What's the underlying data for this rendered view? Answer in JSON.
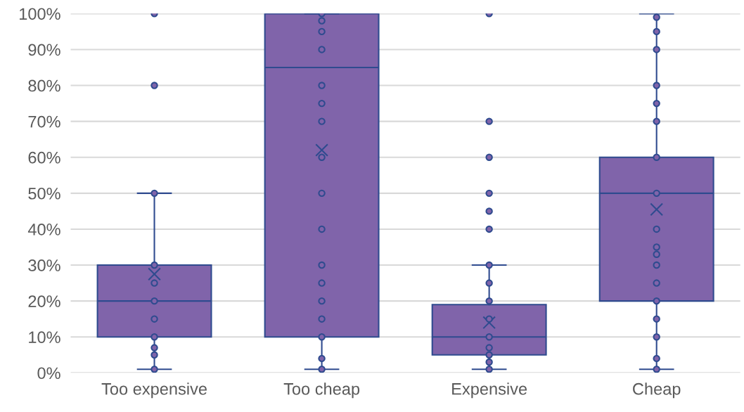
{
  "chart_data": {
    "type": "box",
    "categories": [
      "Too expensive",
      "Too cheap",
      "Expensive",
      "Cheap"
    ],
    "color": "#8064aa",
    "boxes": [
      {
        "low": 1,
        "q1": 10,
        "median": 20,
        "q3": 30,
        "high": 50,
        "mean": 27.5,
        "outliers": [
          80,
          100
        ]
      },
      {
        "low": 1,
        "q1": 10,
        "median": 85,
        "q3": 100,
        "high": 100,
        "mean": 62
      },
      {
        "low": 1,
        "q1": 5,
        "median": 10,
        "q3": 19,
        "high": 30,
        "mean": 14,
        "outliers": [
          40,
          45,
          50,
          60,
          70,
          100
        ]
      },
      {
        "low": 1,
        "q1": 20,
        "median": 50,
        "q3": 60,
        "high": 100,
        "mean": 45.5
      }
    ],
    "series": [
      {
        "type": "scatter",
        "color": "#8064aa",
        "x": [
          "Too expensive",
          "Too expensive",
          "Too expensive",
          "Too expensive",
          "Too expensive",
          "Too expensive",
          "Too expensive",
          "Too expensive",
          "Too expensive"
        ],
        "values": [
          1,
          5,
          7,
          10,
          15,
          20,
          25,
          30,
          50
        ]
      },
      {
        "type": "scatter",
        "color": "#8064aa",
        "x": [
          "Too cheap",
          "Too cheap",
          "Too cheap",
          "Too cheap",
          "Too cheap",
          "Too cheap",
          "Too cheap",
          "Too cheap",
          "Too cheap",
          "Too cheap",
          "Too cheap",
          "Too cheap",
          "Too cheap",
          "Too cheap",
          "Too cheap",
          "Too cheap",
          "Too cheap"
        ],
        "values": [
          1,
          4,
          10,
          15,
          20,
          25,
          30,
          40,
          50,
          60,
          70,
          75,
          80,
          90,
          95,
          98,
          100
        ]
      },
      {
        "type": "scatter",
        "color": "#8064aa",
        "x": [
          "Expensive",
          "Expensive",
          "Expensive",
          "Expensive",
          "Expensive",
          "Expensive",
          "Expensive",
          "Expensive",
          "Expensive"
        ],
        "values": [
          1,
          3,
          5,
          7,
          10,
          15,
          20,
          25,
          30
        ]
      },
      {
        "type": "scatter",
        "color": "#8064aa",
        "x": [
          "Cheap",
          "Cheap",
          "Cheap",
          "Cheap",
          "Cheap",
          "Cheap",
          "Cheap",
          "Cheap",
          "Cheap",
          "Cheap",
          "Cheap",
          "Cheap",
          "Cheap",
          "Cheap",
          "Cheap",
          "Cheap",
          "Cheap",
          "Cheap"
        ],
        "values": [
          1,
          4,
          10,
          15,
          20,
          25,
          30,
          33,
          35,
          40,
          50,
          60,
          70,
          75,
          80,
          90,
          95,
          99
        ]
      }
    ],
    "marker": "circle",
    "ylim": [
      0,
      100
    ],
    "yticks": [
      {
        "value": 0,
        "label": "0%"
      },
      {
        "value": 10,
        "label": "10%"
      },
      {
        "value": 20,
        "label": "20%"
      },
      {
        "value": 30,
        "label": "30%"
      },
      {
        "value": 40,
        "label": "40%"
      },
      {
        "value": 50,
        "label": "50%"
      },
      {
        "value": 60,
        "label": "60%"
      },
      {
        "value": 70,
        "label": "70%"
      },
      {
        "value": 80,
        "label": "80%"
      },
      {
        "value": 90,
        "label": "90%"
      },
      {
        "value": 100,
        "label": "100%"
      }
    ],
    "grid": "y",
    "legend": false
  }
}
